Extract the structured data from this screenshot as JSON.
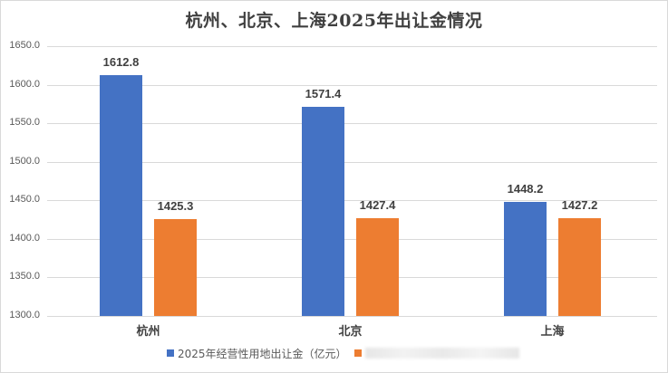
{
  "title": "杭州、北京、上海2025年出让金情况",
  "chart_data": {
    "type": "bar",
    "title": "杭州、北京、上海2025年出让金情况",
    "xlabel": "",
    "ylabel": "",
    "categories": [
      "杭州",
      "北京",
      "上海"
    ],
    "series": [
      {
        "name": "2025年经营性用地出让金（亿元）",
        "color": "#4472c4",
        "values": [
          1612.8,
          1571.4,
          1448.2
        ]
      },
      {
        "name": "",
        "color": "#ed7d31",
        "values": [
          1425.3,
          1427.4,
          1427.2
        ]
      }
    ],
    "ylim": [
      1300,
      1650
    ],
    "yticks": [
      "1300.0",
      "1350.0",
      "1400.0",
      "1450.0",
      "1500.0",
      "1550.0",
      "1600.0",
      "1650.0"
    ],
    "grid": true,
    "legend_position": "bottom",
    "data_labels": true
  },
  "labels": {
    "hz_blue": "1612.8",
    "hz_orange": "1425.3",
    "bj_blue": "1571.4",
    "bj_orange": "1427.4",
    "sh_blue": "1448.2",
    "sh_orange": "1427.2"
  },
  "legend": {
    "series1": "2025年经营性用地出让金（亿元）",
    "series2_obscured": true
  }
}
